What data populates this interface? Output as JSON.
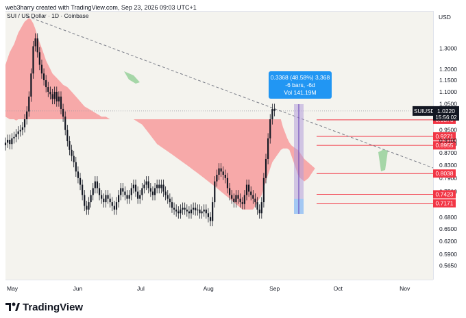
{
  "header": {
    "caption": "web3harry created with TradingView.com, Sep 23, 2026 09:03 UTC+1"
  },
  "symbol": {
    "title": "SUI / US Dollar · 1D · Coinbase"
  },
  "currency_label": "USD",
  "footer": {
    "brand": "TradingView"
  },
  "measure_tooltip": {
    "line1": "0.3368 (48.58%) 3,368",
    "line2": "-6 bars, -6d",
    "line3": "Vol 141.19M"
  },
  "price_tag": {
    "symbol": "SUIUSD",
    "price": "1.0220",
    "countdown": "15:56:02"
  },
  "colors": {
    "plot_bg": "#f4f3ee",
    "cloud": "#f7a4a4",
    "cloud_green": "#a5d6a7",
    "candle": "#131722",
    "level_line": "#f23645",
    "trendline": "#787b86",
    "tooltip": "#2196f3",
    "measure_box": "#b39ddb",
    "price_tag": "#131722"
  },
  "chart_data": {
    "type": "candlestick",
    "title": "SUI / US Dollar · 1D · Coinbase",
    "scale": "log",
    "ylim": [
      0.535,
      1.5
    ],
    "xlabel": "",
    "ylabel": "USD",
    "y_ticks": [
      "1.3000",
      "1.2000",
      "1.1500",
      "1.1000",
      "1.0500",
      "0.9500",
      "0.9000",
      "0.8700",
      "0.8300",
      "0.7900",
      "0.7500",
      "0.6800",
      "0.6500",
      "0.6200",
      "0.5900",
      "0.5650"
    ],
    "x_ticks": [
      {
        "label": "May",
        "day": 0
      },
      {
        "label": "Jun",
        "day": 31
      },
      {
        "label": "Jul",
        "day": 61
      },
      {
        "label": "Aug",
        "day": 92
      },
      {
        "label": "Sep",
        "day": 123
      },
      {
        "label": "Oct",
        "day": 153
      },
      {
        "label": "Nov",
        "day": 184
      }
    ],
    "levels": [
      "0.9876",
      "0.9271",
      "0.8955",
      "0.8038",
      "0.7423",
      "0.7171"
    ],
    "level_label_extra": "0.9100",
    "last_price": "1.0220",
    "closes": [
      0.905,
      0.915,
      0.9,
      0.92,
      0.925,
      0.935,
      0.945,
      0.95,
      0.96,
      0.99,
      1.02,
      1.08,
      1.18,
      1.31,
      1.35,
      1.28,
      1.22,
      1.18,
      1.15,
      1.12,
      1.1,
      1.09,
      1.07,
      1.1,
      1.06,
      1.08,
      1.03,
      1.0,
      0.95,
      0.91,
      0.88,
      0.86,
      0.84,
      0.81,
      0.79,
      0.77,
      0.74,
      0.71,
      0.7,
      0.72,
      0.74,
      0.76,
      0.78,
      0.76,
      0.74,
      0.73,
      0.72,
      0.74,
      0.73,
      0.72,
      0.71,
      0.7,
      0.72,
      0.74,
      0.76,
      0.75,
      0.74,
      0.73,
      0.74,
      0.76,
      0.77,
      0.75,
      0.73,
      0.74,
      0.76,
      0.77,
      0.78,
      0.76,
      0.75,
      0.74,
      0.76,
      0.77,
      0.76,
      0.77,
      0.75,
      0.74,
      0.73,
      0.72,
      0.705,
      0.7,
      0.695,
      0.69,
      0.7,
      0.705,
      0.7,
      0.695,
      0.69,
      0.7,
      0.705,
      0.698,
      0.7,
      0.69,
      0.695,
      0.7,
      0.69,
      0.68,
      0.67,
      0.72,
      0.78,
      0.8,
      0.82,
      0.81,
      0.8,
      0.79,
      0.76,
      0.74,
      0.73,
      0.72,
      0.74,
      0.73,
      0.72,
      0.715,
      0.74,
      0.77,
      0.75,
      0.74,
      0.73,
      0.72,
      0.7,
      0.69,
      0.72,
      0.79,
      0.85,
      0.92,
      0.99,
      1.03,
      1.022
    ],
    "cloud": {
      "top": [
        1.22,
        1.25,
        1.28,
        1.3,
        1.32,
        1.35,
        1.38,
        1.4,
        1.42,
        1.44,
        1.45,
        1.46,
        1.45,
        1.43,
        1.4,
        1.36,
        1.33,
        1.3,
        1.27,
        1.24,
        1.22,
        1.2,
        1.18,
        1.17,
        1.16,
        1.15,
        1.14,
        1.13,
        1.125,
        1.12,
        1.11,
        1.1,
        1.09,
        1.08,
        1.07,
        1.06,
        1.05,
        1.04,
        1.035,
        1.03,
        1.025,
        1.02,
        1.015,
        1.01,
        1.005,
        1.0,
        1.0,
        1.0,
        0.995,
        0.99,
        0.99,
        0.99,
        0.99,
        0.99,
        0.99,
        0.99,
        0.99,
        0.99,
        0.99,
        0.99,
        0.99,
        0.99,
        0.99,
        0.99,
        0.99,
        0.99,
        0.99,
        0.99,
        0.99,
        0.99,
        0.99,
        0.99,
        0.99,
        0.99,
        0.99,
        0.99,
        0.99,
        0.99,
        0.99,
        0.99,
        0.99,
        0.99,
        0.99,
        0.99,
        0.99,
        0.99,
        0.99,
        0.99,
        0.99,
        0.99,
        0.99,
        0.99,
        0.99,
        0.99,
        0.99,
        0.99,
        0.99,
        0.99,
        0.99,
        0.99,
        0.99,
        0.99,
        0.99,
        0.99,
        0.99,
        0.99,
        0.99,
        0.99,
        0.99,
        0.99,
        0.99,
        0.99,
        0.99,
        0.99,
        0.99,
        0.99,
        0.99,
        0.99,
        0.99,
        0.99,
        0.99,
        0.99,
        0.99,
        0.99,
        0.99,
        0.99,
        0.99,
        0.99,
        0.99,
        0.99,
        0.96,
        0.94,
        0.92,
        0.905,
        0.895,
        0.89,
        0.885,
        0.88,
        0.87,
        0.86,
        0.85
      ],
      "bottom": [
        1.0,
        0.995,
        0.99,
        0.99,
        0.99,
        0.985,
        0.99,
        0.99,
        0.99,
        0.99,
        0.99,
        0.99,
        0.99,
        0.99,
        0.99,
        0.99,
        0.99,
        0.99,
        0.99,
        0.99,
        0.99,
        0.99,
        0.99,
        0.99,
        0.99,
        0.99,
        0.99,
        0.99,
        0.99,
        0.99,
        0.99,
        0.99,
        0.99,
        0.99,
        0.99,
        0.99,
        0.99,
        0.99,
        0.99,
        0.99,
        0.99,
        0.99,
        0.99,
        0.99,
        0.99,
        0.99,
        0.99,
        0.99,
        0.99,
        0.99,
        0.99,
        0.99,
        0.99,
        0.99,
        0.99,
        0.99,
        0.99,
        0.99,
        0.99,
        0.99,
        0.99,
        0.985,
        0.98,
        0.975,
        0.97,
        0.96,
        0.95,
        0.94,
        0.93,
        0.92,
        0.91,
        0.9,
        0.895,
        0.89,
        0.885,
        0.88,
        0.875,
        0.87,
        0.865,
        0.86,
        0.855,
        0.85,
        0.845,
        0.84,
        0.835,
        0.83,
        0.825,
        0.82,
        0.815,
        0.81,
        0.805,
        0.8,
        0.795,
        0.79,
        0.785,
        0.78,
        0.775,
        0.77,
        0.765,
        0.76,
        0.755,
        0.75,
        0.745,
        0.74,
        0.735,
        0.73,
        0.725,
        0.72,
        0.715,
        0.71,
        0.705,
        0.7,
        0.7,
        0.7,
        0.7,
        0.7,
        0.7,
        0.71,
        0.72,
        0.73,
        0.74,
        0.76,
        0.78,
        0.8,
        0.82,
        0.84,
        0.85,
        0.86,
        0.87,
        0.88,
        0.885,
        0.885,
        0.885,
        0.88,
        0.86,
        0.84,
        0.82,
        0.8,
        0.79,
        0.785,
        0.78,
        0.785,
        0.79,
        0.8,
        0.81,
        0.82
      ]
    }
  }
}
